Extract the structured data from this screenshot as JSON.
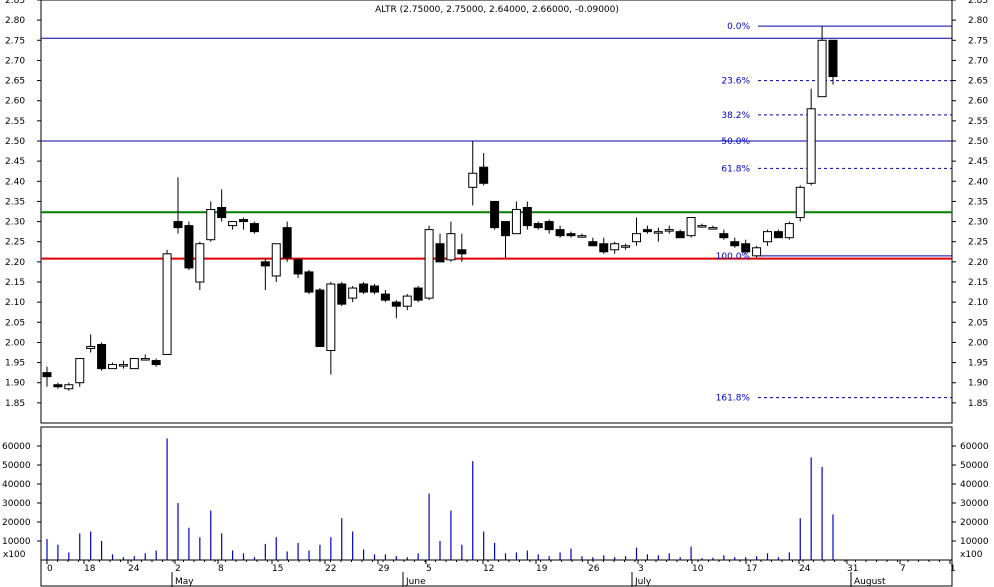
{
  "chart_data": {
    "type": "candlestick",
    "title": "ALTR (2.75000, 2.75000, 2.64000, 2.66000, -0.09000)",
    "ylim": [
      1.8,
      2.85
    ],
    "y_ticks": [
      1.85,
      1.9,
      1.95,
      2.0,
      2.05,
      2.1,
      2.15,
      2.2,
      2.25,
      2.3,
      2.35,
      2.4,
      2.45,
      2.5,
      2.55,
      2.6,
      2.65,
      2.7,
      2.75,
      2.8,
      2.85
    ],
    "y_tick_labels": [
      "1.85",
      "1.90",
      "1.95",
      "2.00",
      "2.05",
      "2.10",
      "2.15",
      "2.20",
      "2.25",
      "2.30",
      "2.35",
      "2.40",
      "2.45",
      "2.50",
      "2.55",
      "2.60",
      "2.65",
      "2.70",
      "2.75",
      "2.80",
      "2.85"
    ],
    "volume_ylim": [
      0,
      70000
    ],
    "volume_ticks": [
      10000,
      20000,
      30000,
      40000,
      50000,
      60000
    ],
    "volume_tick_labels": [
      "10000",
      "20000",
      "30000",
      "40000",
      "50000",
      "60000"
    ],
    "volume_unit_label": "x100",
    "x_tick_labels": [
      "0",
      "18",
      "24",
      "2",
      "8",
      "15",
      "22",
      "29",
      "5",
      "12",
      "19",
      "26",
      "3",
      "10",
      "17",
      "24",
      "31",
      "7",
      "1"
    ],
    "month_labels": [
      "May",
      "June",
      "July",
      "August"
    ],
    "horizontal_lines": [
      {
        "value": 2.755,
        "color": "#0000aa"
      },
      {
        "value": 2.5,
        "color": "#0000aa"
      },
      {
        "value": 2.323,
        "color": "#008000"
      },
      {
        "value": 2.208,
        "color": "#dd0000"
      }
    ],
    "fibonacci": {
      "levels": [
        {
          "label": "0.0%",
          "value": 2.785
        },
        {
          "label": "23.6%",
          "value": 2.65
        },
        {
          "label": "38.2%",
          "value": 2.565
        },
        {
          "label": "50.0%",
          "value": 2.5
        },
        {
          "label": "61.8%",
          "value": 2.432
        },
        {
          "label": "100.0%",
          "value": 2.215
        },
        {
          "label": "161.8%",
          "value": 1.863
        }
      ]
    },
    "series": [
      {
        "o": 1.925,
        "h": 1.94,
        "l": 1.89,
        "c": 1.915,
        "v": 11000
      },
      {
        "o": 1.895,
        "h": 1.9,
        "l": 1.885,
        "c": 1.89,
        "v": 8000
      },
      {
        "o": 1.885,
        "h": 1.9,
        "l": 1.88,
        "c": 1.895,
        "v": 4000
      },
      {
        "o": 1.9,
        "h": 1.96,
        "l": 1.89,
        "c": 1.96,
        "v": 14000
      },
      {
        "o": 1.985,
        "h": 2.02,
        "l": 1.975,
        "c": 1.99,
        "v": 15000
      },
      {
        "o": 1.995,
        "h": 2.0,
        "l": 1.93,
        "c": 1.935,
        "v": 10000
      },
      {
        "o": 1.935,
        "h": 1.95,
        "l": 1.935,
        "c": 1.945,
        "v": 3000
      },
      {
        "o": 1.945,
        "h": 1.955,
        "l": 1.935,
        "c": 1.945,
        "v": 1500
      },
      {
        "o": 1.935,
        "h": 1.96,
        "l": 1.935,
        "c": 1.96,
        "v": 2000
      },
      {
        "o": 1.96,
        "h": 1.97,
        "l": 1.955,
        "c": 1.96,
        "v": 3500
      },
      {
        "o": 1.955,
        "h": 1.96,
        "l": 1.94,
        "c": 1.945,
        "v": 5000
      },
      {
        "o": 1.97,
        "h": 2.23,
        "l": 1.97,
        "c": 2.22,
        "v": 64000
      },
      {
        "o": 2.3,
        "h": 2.41,
        "l": 2.27,
        "c": 2.285,
        "v": 30000
      },
      {
        "o": 2.29,
        "h": 2.3,
        "l": 2.18,
        "c": 2.185,
        "v": 17000
      },
      {
        "o": 2.15,
        "h": 2.25,
        "l": 2.13,
        "c": 2.245,
        "v": 12000
      },
      {
        "o": 2.255,
        "h": 2.35,
        "l": 2.25,
        "c": 2.33,
        "v": 26000
      },
      {
        "o": 2.335,
        "h": 2.38,
        "l": 2.3,
        "c": 2.31,
        "v": 14000
      },
      {
        "o": 2.29,
        "h": 2.3,
        "l": 2.28,
        "c": 2.3,
        "v": 5000
      },
      {
        "o": 2.305,
        "h": 2.31,
        "l": 2.28,
        "c": 2.3,
        "v": 3500
      },
      {
        "o": 2.295,
        "h": 2.3,
        "l": 2.27,
        "c": 2.275,
        "v": 1500
      },
      {
        "o": 2.2,
        "h": 2.21,
        "l": 2.13,
        "c": 2.19,
        "v": 8500
      },
      {
        "o": 2.165,
        "h": 2.245,
        "l": 2.15,
        "c": 2.245,
        "v": 12000
      },
      {
        "o": 2.285,
        "h": 2.3,
        "l": 2.2,
        "c": 2.21,
        "v": 4500
      },
      {
        "o": 2.205,
        "h": 2.21,
        "l": 2.16,
        "c": 2.17,
        "v": 9000
      },
      {
        "o": 2.175,
        "h": 2.18,
        "l": 2.12,
        "c": 2.125,
        "v": 5000
      },
      {
        "o": 2.13,
        "h": 2.135,
        "l": 1.99,
        "c": 1.99,
        "v": 8000
      },
      {
        "o": 1.98,
        "h": 2.15,
        "l": 1.92,
        "c": 2.145,
        "v": 12000
      },
      {
        "o": 2.145,
        "h": 2.15,
        "l": 2.09,
        "c": 2.095,
        "v": 22000
      },
      {
        "o": 2.11,
        "h": 2.14,
        "l": 2.1,
        "c": 2.135,
        "v": 15000
      },
      {
        "o": 2.145,
        "h": 2.15,
        "l": 2.12,
        "c": 2.125,
        "v": 5500
      },
      {
        "o": 2.14,
        "h": 2.145,
        "l": 2.12,
        "c": 2.125,
        "v": 3000
      },
      {
        "o": 2.12,
        "h": 2.13,
        "l": 2.1,
        "c": 2.105,
        "v": 3000
      },
      {
        "o": 2.1,
        "h": 2.105,
        "l": 2.06,
        "c": 2.09,
        "v": 2000
      },
      {
        "o": 2.09,
        "h": 2.12,
        "l": 2.08,
        "c": 2.115,
        "v": 1500
      },
      {
        "o": 2.135,
        "h": 2.14,
        "l": 2.1,
        "c": 2.105,
        "v": 3500
      },
      {
        "o": 2.11,
        "h": 2.29,
        "l": 2.105,
        "c": 2.28,
        "v": 35000
      },
      {
        "o": 2.245,
        "h": 2.27,
        "l": 2.2,
        "c": 2.2,
        "v": 10000
      },
      {
        "o": 2.205,
        "h": 2.3,
        "l": 2.2,
        "c": 2.27,
        "v": 26000
      },
      {
        "o": 2.23,
        "h": 2.27,
        "l": 2.2,
        "c": 2.22,
        "v": 8000
      },
      {
        "o": 2.385,
        "h": 2.5,
        "l": 2.34,
        "c": 2.42,
        "v": 52000
      },
      {
        "o": 2.435,
        "h": 2.47,
        "l": 2.39,
        "c": 2.395,
        "v": 15000
      },
      {
        "o": 2.35,
        "h": 2.35,
        "l": 2.28,
        "c": 2.285,
        "v": 9000
      },
      {
        "o": 2.3,
        "h": 2.3,
        "l": 2.21,
        "c": 2.265,
        "v": 3500
      },
      {
        "o": 2.27,
        "h": 2.35,
        "l": 2.27,
        "c": 2.33,
        "v": 4000
      },
      {
        "o": 2.335,
        "h": 2.35,
        "l": 2.28,
        "c": 2.29,
        "v": 5000
      },
      {
        "o": 2.295,
        "h": 2.3,
        "l": 2.28,
        "c": 2.285,
        "v": 3000
      },
      {
        "o": 2.3,
        "h": 2.305,
        "l": 2.27,
        "c": 2.28,
        "v": 2000
      },
      {
        "o": 2.28,
        "h": 2.29,
        "l": 2.26,
        "c": 2.265,
        "v": 4000
      },
      {
        "o": 2.27,
        "h": 2.275,
        "l": 2.26,
        "c": 2.265,
        "v": 6000
      },
      {
        "o": 2.265,
        "h": 2.27,
        "l": 2.26,
        "c": 2.265,
        "v": 2000
      },
      {
        "o": 2.25,
        "h": 2.26,
        "l": 2.24,
        "c": 2.24,
        "v": 1500
      },
      {
        "o": 2.245,
        "h": 2.26,
        "l": 2.22,
        "c": 2.225,
        "v": 2500
      },
      {
        "o": 2.23,
        "h": 2.25,
        "l": 2.22,
        "c": 2.245,
        "v": 1500
      },
      {
        "o": 2.24,
        "h": 2.245,
        "l": 2.23,
        "c": 2.24,
        "v": 2000
      },
      {
        "o": 2.25,
        "h": 2.31,
        "l": 2.24,
        "c": 2.27,
        "v": 6500
      },
      {
        "o": 2.28,
        "h": 2.29,
        "l": 2.27,
        "c": 2.275,
        "v": 3000
      },
      {
        "o": 2.275,
        "h": 2.285,
        "l": 2.25,
        "c": 2.275,
        "v": 2500
      },
      {
        "o": 2.28,
        "h": 2.29,
        "l": 2.27,
        "c": 2.28,
        "v": 3500
      },
      {
        "o": 2.275,
        "h": 2.28,
        "l": 2.26,
        "c": 2.26,
        "v": 1500
      },
      {
        "o": 2.265,
        "h": 2.31,
        "l": 2.26,
        "c": 2.31,
        "v": 7000
      },
      {
        "o": 2.29,
        "h": 2.295,
        "l": 2.285,
        "c": 2.29,
        "v": 1000
      },
      {
        "o": 2.285,
        "h": 2.29,
        "l": 2.28,
        "c": 2.285,
        "v": 1200
      },
      {
        "o": 2.27,
        "h": 2.28,
        "l": 2.255,
        "c": 2.26,
        "v": 2500
      },
      {
        "o": 2.25,
        "h": 2.26,
        "l": 2.235,
        "c": 2.24,
        "v": 1500
      },
      {
        "o": 2.245,
        "h": 2.255,
        "l": 2.22,
        "c": 2.225,
        "v": 1500
      },
      {
        "o": 2.215,
        "h": 2.24,
        "l": 2.21,
        "c": 2.235,
        "v": 2000
      },
      {
        "o": 2.25,
        "h": 2.28,
        "l": 2.24,
        "c": 2.275,
        "v": 3500
      },
      {
        "o": 2.275,
        "h": 2.28,
        "l": 2.26,
        "c": 2.26,
        "v": 1500
      },
      {
        "o": 2.26,
        "h": 2.3,
        "l": 2.255,
        "c": 2.295,
        "v": 4000
      },
      {
        "o": 2.31,
        "h": 2.39,
        "l": 2.3,
        "c": 2.385,
        "v": 22000
      },
      {
        "o": 2.395,
        "h": 2.63,
        "l": 2.39,
        "c": 2.58,
        "v": 54000
      },
      {
        "o": 2.61,
        "h": 2.785,
        "l": 2.61,
        "c": 2.75,
        "v": 49000
      },
      {
        "o": 2.75,
        "h": 2.75,
        "l": 2.64,
        "c": 2.66,
        "v": 24000
      }
    ]
  }
}
